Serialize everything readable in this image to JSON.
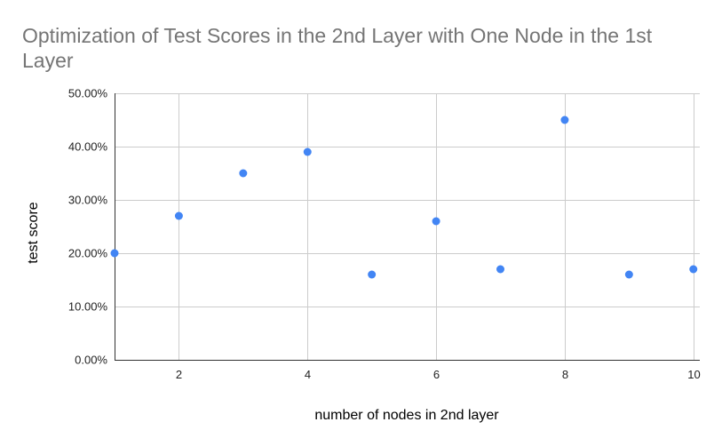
{
  "chart_data": {
    "type": "scatter",
    "title": "Optimization of Test Scores in the 2nd Layer with One Node in the 1st Layer",
    "xlabel": "number of nodes in 2nd layer",
    "ylabel": "test score",
    "x": [
      1,
      2,
      3,
      4,
      5,
      6,
      7,
      8,
      9,
      10
    ],
    "y": [
      0.2,
      0.27,
      0.35,
      0.39,
      0.16,
      0.26,
      0.17,
      0.45,
      0.16,
      0.17
    ],
    "xlim": [
      1,
      10.1
    ],
    "ylim": [
      0,
      0.5
    ],
    "x_ticks": [
      2,
      4,
      6,
      8,
      10
    ],
    "x_tick_labels": [
      "2",
      "4",
      "6",
      "8",
      "10"
    ],
    "y_ticks": [
      0,
      0.1,
      0.2,
      0.3,
      0.4,
      0.5
    ],
    "y_tick_labels": [
      "0.00%",
      "10.00%",
      "20.00%",
      "30.00%",
      "40.00%",
      "50.00%"
    ],
    "grid": true,
    "legend": "none",
    "point_color": "#4285f4",
    "grid_color": "#cccccc",
    "axis_color": "#333333",
    "title_color": "#757575"
  }
}
